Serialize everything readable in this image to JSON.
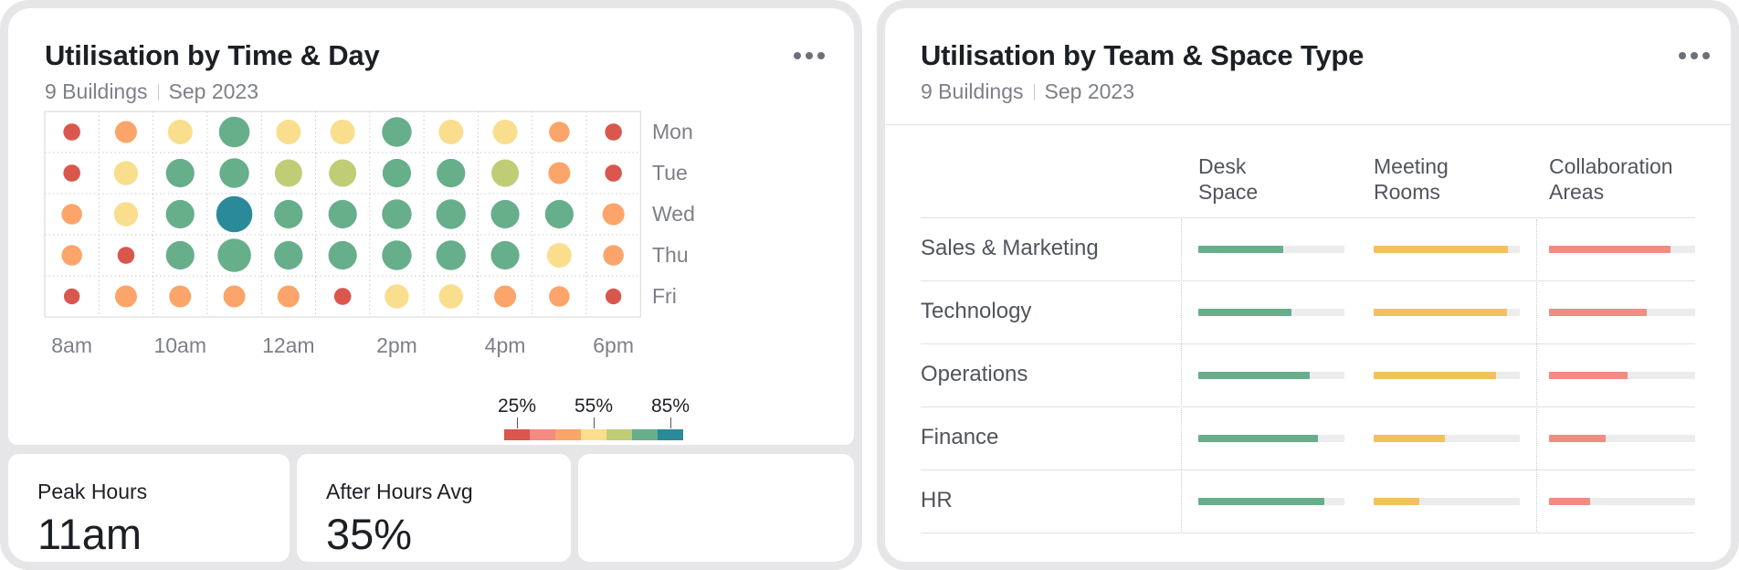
{
  "time_day": {
    "title": "Utilisation by Time & Day",
    "subtitle_buildings": "9 Buildings",
    "subtitle_period": "Sep 2023",
    "days": [
      "Mon",
      "Tue",
      "Wed",
      "Thu",
      "Fri"
    ],
    "time_labels": [
      "8am",
      "10am",
      "12am",
      "2pm",
      "4pm",
      "6pm"
    ],
    "hours": [
      "8am",
      "9am",
      "10am",
      "11am",
      "12pm",
      "1pm",
      "2pm",
      "3pm",
      "4pm",
      "5pm",
      "6pm"
    ],
    "utilisation_pct": [
      [
        22,
        40,
        50,
        72,
        50,
        50,
        68,
        50,
        50,
        35,
        22
      ],
      [
        22,
        48,
        64,
        68,
        60,
        60,
        64,
        64,
        60,
        40,
        22
      ],
      [
        35,
        48,
        64,
        92,
        64,
        64,
        68,
        68,
        64,
        64,
        40
      ],
      [
        35,
        22,
        64,
        82,
        64,
        64,
        68,
        68,
        64,
        50,
        35
      ],
      [
        18,
        40,
        40,
        40,
        40,
        22,
        48,
        48,
        40,
        35,
        18
      ]
    ]
  },
  "stats": {
    "peak_label": "Peak Hours",
    "peak_value": "11am",
    "after_label": "After Hours Avg",
    "after_value": "35%"
  },
  "legend": {
    "labels": [
      "25%",
      "55%",
      "85%"
    ],
    "colors": [
      "#d9574d",
      "#f28b82",
      "#fba56a",
      "#f9de8e",
      "#c1cc77",
      "#67ae8b",
      "#2b8a9a"
    ]
  },
  "team_space": {
    "title": "Utilisation by Team & Space Type",
    "subtitle_buildings": "9 Buildings",
    "subtitle_period": "Sep 2023",
    "columns": [
      {
        "line1": "Desk",
        "line2": "Space",
        "color": "#67ae8b"
      },
      {
        "line1": "Meeting",
        "line2": "Rooms",
        "color": "#f3c15c"
      },
      {
        "line1": "Collaboration",
        "line2": "Areas",
        "color": "#f28b82"
      }
    ],
    "rows": [
      {
        "team": "Sales & Marketing",
        "values": [
          58,
          92,
          83
        ]
      },
      {
        "team": "Technology",
        "values": [
          64,
          91,
          67
        ]
      },
      {
        "team": "Operations",
        "values": [
          76,
          84,
          54
        ]
      },
      {
        "team": "Finance",
        "values": [
          82,
          49,
          39
        ]
      },
      {
        "team": "HR",
        "values": [
          86,
          31,
          28
        ]
      }
    ]
  }
}
